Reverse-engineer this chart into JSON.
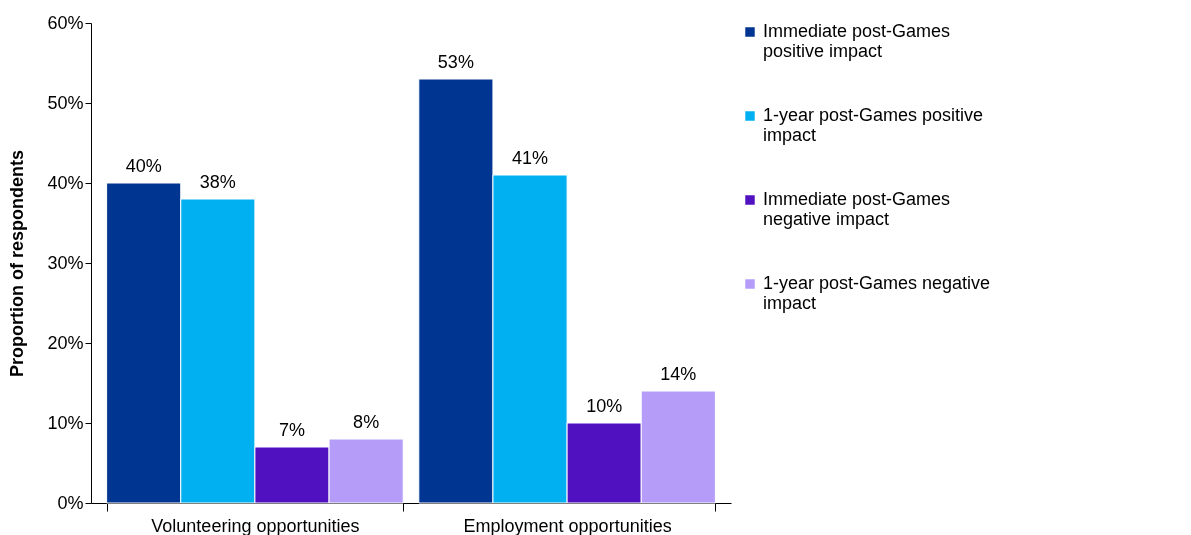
{
  "chart_data": {
    "type": "bar",
    "ylabel": "Proportion of respondents",
    "categories": [
      "Volunteering opportunities",
      "Employment opportunities"
    ],
    "series": [
      {
        "name": "Immediate post-Games positive impact",
        "color": "#003591",
        "values": [
          40,
          53
        ],
        "value_labels": [
          "40%",
          "53%"
        ]
      },
      {
        "name": "1-year post-Games positive impact",
        "color": "#00b0f0",
        "values": [
          38,
          41
        ],
        "value_labels": [
          "38%",
          "41%"
        ]
      },
      {
        "name": "Immediate post-Games negative impact",
        "color": "#5011c0",
        "values": [
          7,
          10
        ],
        "value_labels": [
          "7%",
          "10%"
        ]
      },
      {
        "name": "1-year post-Games negative impact",
        "color": "#b49cf8",
        "values": [
          8,
          14
        ],
        "value_labels": [
          "8%",
          "14%"
        ]
      }
    ],
    "ylim": [
      0,
      60
    ],
    "yticks": [
      {
        "value": 0,
        "label": "0%"
      },
      {
        "value": 10,
        "label": "10%"
      },
      {
        "value": 20,
        "label": "20%"
      },
      {
        "value": 30,
        "label": "30%"
      },
      {
        "value": 40,
        "label": "40%"
      },
      {
        "value": 50,
        "label": "50%"
      },
      {
        "value": 60,
        "label": "60%"
      }
    ],
    "grid": false,
    "legend": "right"
  }
}
